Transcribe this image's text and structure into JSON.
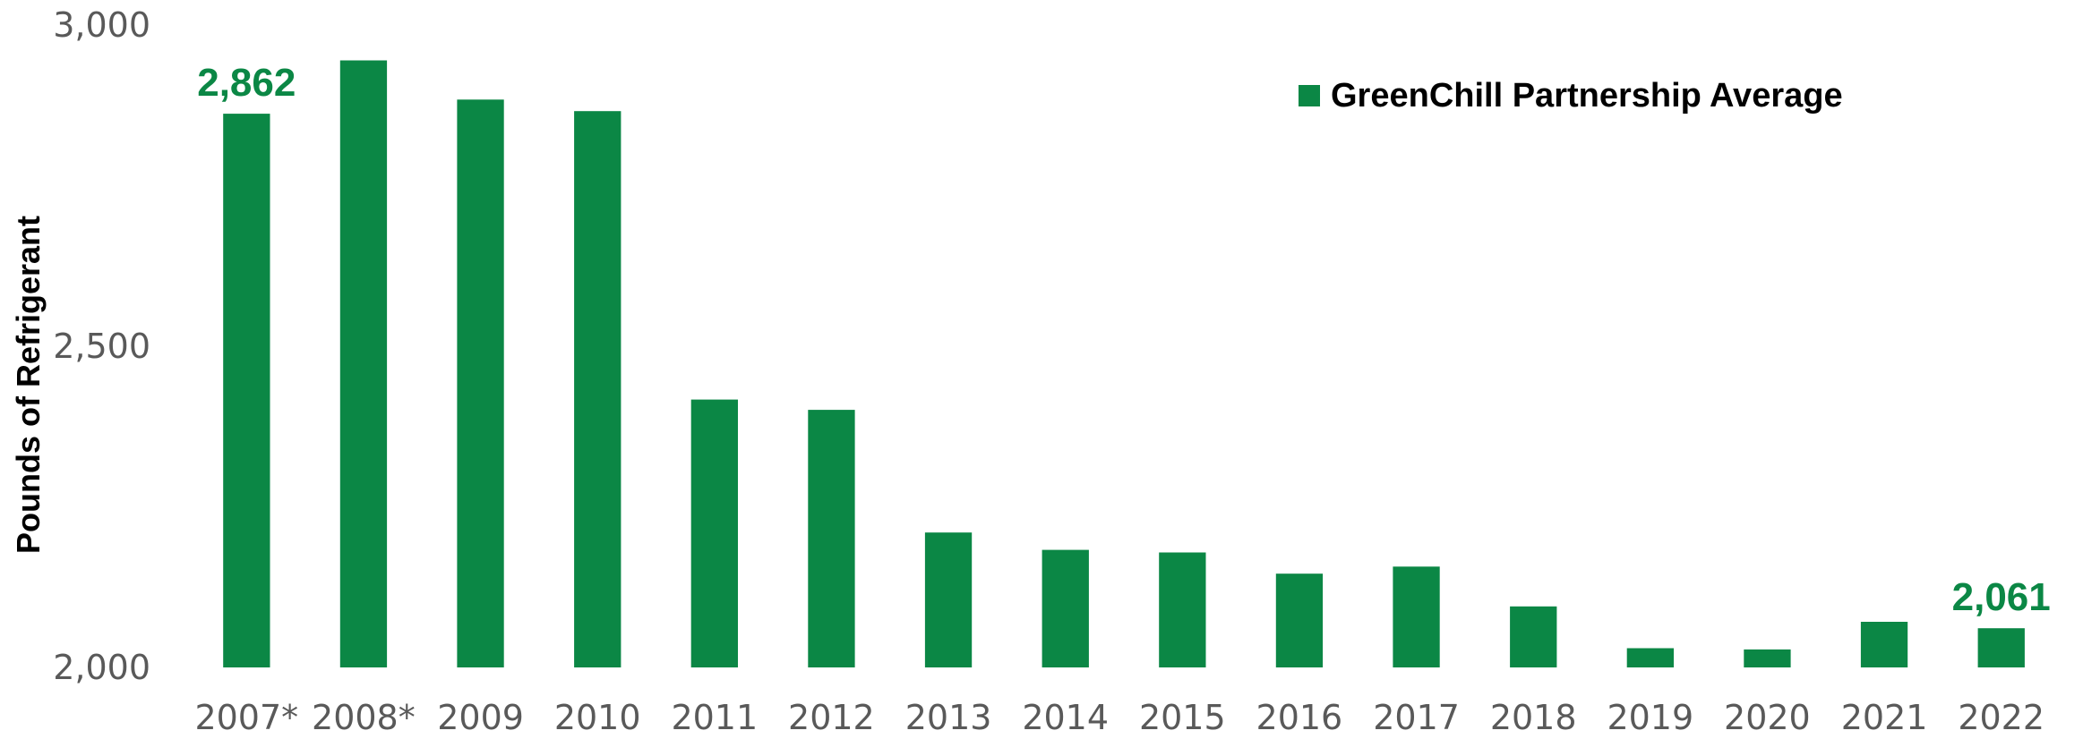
{
  "chart_data": {
    "type": "bar",
    "categories": [
      "2007*",
      "2008*",
      "2009",
      "2010",
      "2011",
      "2012",
      "2013",
      "2014",
      "2015",
      "2016",
      "2017",
      "2018",
      "2019",
      "2020",
      "2021",
      "2022"
    ],
    "series": [
      {
        "name": "GreenChill Partnership Average",
        "values": [
          2862,
          2945,
          2884,
          2866,
          2417,
          2401,
          2210,
          2183,
          2179,
          2146,
          2157,
          2095,
          2030,
          2028,
          2071,
          2061
        ]
      }
    ],
    "ylabel": "Pounds of Refrigerant",
    "xlabel": "",
    "ylim": [
      2000,
      3000
    ],
    "yticks": [
      2000,
      2500,
      3000
    ],
    "ytick_labels": [
      "2,000",
      "2,500",
      "3,000"
    ],
    "data_labels": [
      {
        "category": "2007*",
        "text": "2,862"
      },
      {
        "category": "2022",
        "text": "2,061"
      }
    ],
    "legend_position": "top-right",
    "grid": false,
    "colors": {
      "bar": "#0b8745",
      "data_label": "#0b8745",
      "tick_label": "#595959"
    }
  }
}
